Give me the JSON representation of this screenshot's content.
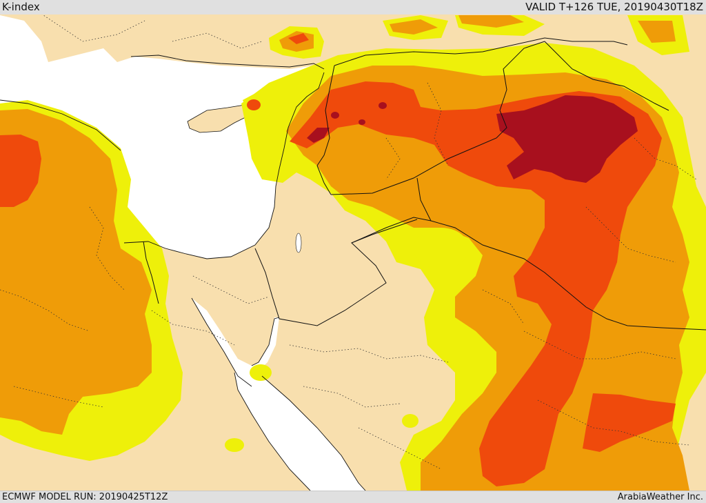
{
  "header": {
    "title": "K-index",
    "valid_time": "VALID T+126 TUE, 20190430T18Z"
  },
  "footer": {
    "model_run": "ECMWF MODEL RUN: 20190425T12Z",
    "credit": "ArabiaWeather Inc."
  },
  "colors": {
    "land": "#f8dfae",
    "sea": "#ffffff",
    "level1": "#eef00a",
    "level2": "#ef9c08",
    "level3": "#ef4a0c",
    "level4": "#a8101e",
    "border": "#111111"
  }
}
